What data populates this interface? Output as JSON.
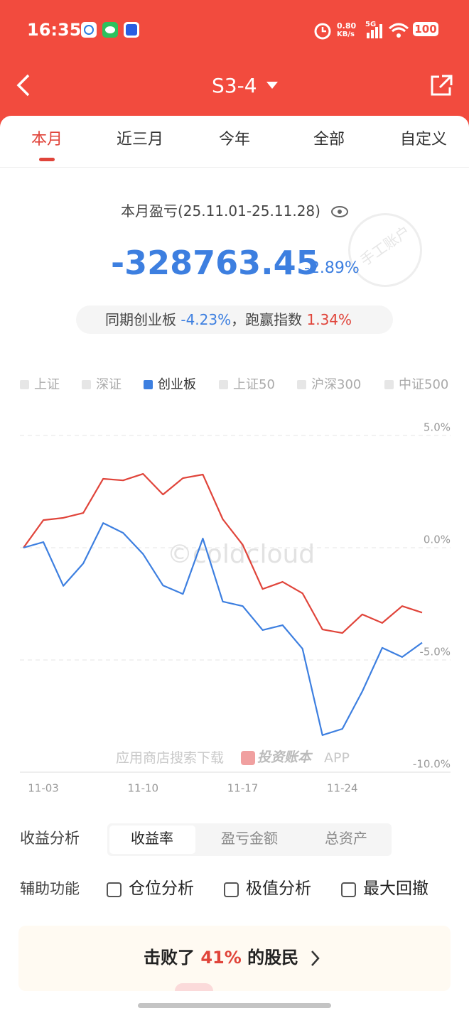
{
  "status_bar": {
    "time": "16:35",
    "net_speed": "0.80",
    "net_unit": "KB/s",
    "signal": "5G",
    "battery": "100"
  },
  "header": {
    "title": "S3-4"
  },
  "tabs": {
    "items": [
      "本月",
      "近三月",
      "今年",
      "全部",
      "自定义"
    ],
    "active": 0
  },
  "summary": {
    "label": "本月盈亏(25.11.01-25.11.28)",
    "amount": "-328763.45",
    "percent": "-2.89%",
    "stamp": "手工账户"
  },
  "comparison": {
    "prefix": "同期创业板",
    "index_return": "-4.23%",
    "middle": "，跑赢指数",
    "excess": "1.34%"
  },
  "chart_data": {
    "type": "line",
    "legend": [
      {
        "name": "上证",
        "color": "#e6e6e6"
      },
      {
        "name": "深证",
        "color": "#e6e6e6"
      },
      {
        "name": "创业板",
        "color": "#3d7fe0"
      },
      {
        "name": "上证50",
        "color": "#e6e6e6"
      },
      {
        "name": "沪深300",
        "color": "#e6e6e6"
      },
      {
        "name": "中证500",
        "color": "#e6e6e6"
      }
    ],
    "legend_active": 2,
    "categories": [
      null,
      "11-03",
      null,
      null,
      null,
      null,
      "11-10",
      null,
      null,
      null,
      null,
      "11-17",
      null,
      null,
      null,
      null,
      "11-24",
      null,
      null,
      null,
      null
    ],
    "series": [
      {
        "color": "#e0443a",
        "values": [
          0,
          1.23,
          1.33,
          1.55,
          3.07,
          3.0,
          3.29,
          2.37,
          3.1,
          3.26,
          1.27,
          0.13,
          -1.84,
          -1.52,
          -2.03,
          -3.64,
          -3.8,
          -2.97,
          -3.35,
          -2.6,
          -2.89
        ]
      },
      {
        "color": "#3d7fe0",
        "values": [
          0,
          0.25,
          -1.7,
          -0.7,
          1.1,
          0.66,
          -0.28,
          -1.68,
          -2.06,
          0.41,
          -2.4,
          -2.6,
          -3.67,
          -3.45,
          -4.5,
          -8.35,
          -8.07,
          -6.4,
          -4.46,
          -4.87,
          -4.23
        ]
      }
    ],
    "ylim": [
      -10,
      5
    ],
    "yticks": [
      {
        "value": 5,
        "label": "5.0%"
      },
      {
        "value": 0,
        "label": "0.0%"
      },
      {
        "value": -5,
        "label": "-5.0%"
      },
      {
        "value": -10,
        "label": "-10.0%"
      }
    ],
    "grid": true,
    "watermark": "©coldcloud"
  },
  "promo": {
    "text": "应用商店搜索下载",
    "brand": "投资账本",
    "suffix": "APP"
  },
  "analysis": {
    "label": "收益分析",
    "options": [
      "收益率",
      "盈亏金额",
      "总资产"
    ],
    "active": 0
  },
  "tools": {
    "label": "辅助功能",
    "options": [
      "仓位分析",
      "极值分析",
      "最大回撤"
    ]
  },
  "rank": {
    "prefix": "击败了",
    "value": "41%",
    "suffix": "的股民"
  }
}
